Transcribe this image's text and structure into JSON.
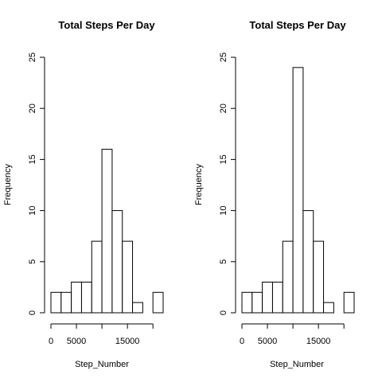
{
  "chart_data": [
    {
      "type": "bar",
      "title": "Total Steps Per Day",
      "xlabel": "Step_Number",
      "ylabel": "Frequency",
      "bin_edges": [
        0,
        2000,
        4000,
        6000,
        8000,
        10000,
        12000,
        14000,
        16000,
        18000,
        20000,
        22000
      ],
      "values": [
        2,
        2,
        3,
        3,
        7,
        16,
        10,
        7,
        1,
        0,
        2
      ],
      "ylim": [
        0,
        25
      ],
      "yticks": [
        0,
        5,
        10,
        15,
        20,
        25
      ],
      "xticks": [
        0,
        5000,
        15000
      ],
      "grid": false
    },
    {
      "type": "bar",
      "title": "Total Steps Per Day",
      "xlabel": "Step_Number",
      "ylabel": "Frequency",
      "bin_edges": [
        0,
        2000,
        4000,
        6000,
        8000,
        10000,
        12000,
        14000,
        16000,
        18000,
        20000,
        22000
      ],
      "values": [
        2,
        2,
        3,
        3,
        7,
        24,
        10,
        7,
        1,
        0,
        2
      ],
      "ylim": [
        0,
        25
      ],
      "yticks": [
        0,
        5,
        10,
        15,
        20,
        25
      ],
      "xticks": [
        0,
        5000,
        15000
      ],
      "grid": false
    }
  ]
}
